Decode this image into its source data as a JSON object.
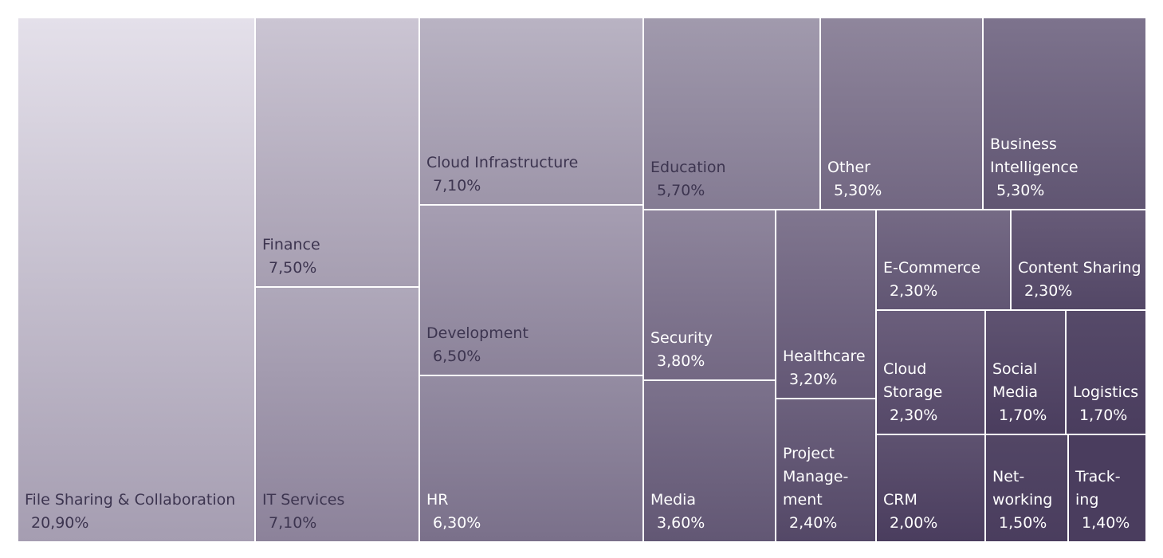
{
  "chart_data": {
    "type": "treemap",
    "items": [
      {
        "label": "File Sharing & Collaboration",
        "value": 20.9,
        "value_label": "20,90%"
      },
      {
        "label": "Finance",
        "value": 7.5,
        "value_label": "7,50%"
      },
      {
        "label": "IT Services",
        "value": 7.1,
        "value_label": "7,10%"
      },
      {
        "label": "Cloud Infrastructure",
        "value": 7.1,
        "value_label": "7,10%"
      },
      {
        "label": "Development",
        "value": 6.5,
        "value_label": "6,50%"
      },
      {
        "label": "HR",
        "value": 6.3,
        "value_label": "6,30%"
      },
      {
        "label": "Education",
        "value": 5.7,
        "value_label": "5,70%"
      },
      {
        "label": "Other",
        "value": 5.3,
        "value_label": "5,30%"
      },
      {
        "label": "Business\nIntelligence",
        "value": 5.3,
        "value_label": "5,30%"
      },
      {
        "label": "Security",
        "value": 3.8,
        "value_label": "3,80%"
      },
      {
        "label": "Media",
        "value": 3.6,
        "value_label": "3,60%"
      },
      {
        "label": "Healthcare",
        "value": 3.2,
        "value_label": "3,20%"
      },
      {
        "label": "Project\nManage-\nment",
        "value": 2.4,
        "value_label": "2,40%"
      },
      {
        "label": "E-Commerce",
        "value": 2.3,
        "value_label": "2,30%"
      },
      {
        "label": "Content Sharing",
        "value": 2.3,
        "value_label": "2,30%"
      },
      {
        "label": "Cloud\nStorage",
        "value": 2.3,
        "value_label": "2,30%"
      },
      {
        "label": "Social\nMedia",
        "value": 1.7,
        "value_label": "1,70%"
      },
      {
        "label": "Logistics",
        "value": 1.7,
        "value_label": "1,70%"
      },
      {
        "label": "CRM",
        "value": 2.0,
        "value_label": "2,00%"
      },
      {
        "label": "Net-\nworking",
        "value": 1.5,
        "value_label": "1,50%"
      },
      {
        "label": "Track-\ning",
        "value": 1.4,
        "value_label": "1,40%"
      }
    ],
    "color_scale": {
      "low": "#e4e0ea",
      "high": "#4a3d5e"
    }
  }
}
